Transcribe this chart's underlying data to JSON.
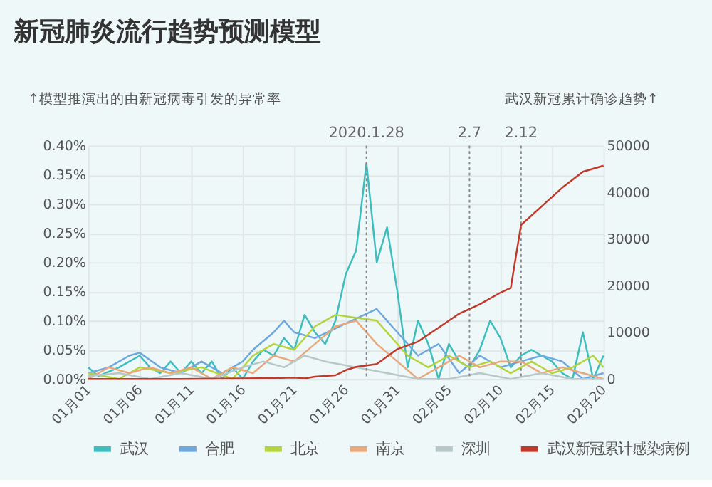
{
  "chart_data": {
    "type": "line",
    "title": "新冠肺炎流行趋势预测模型",
    "ylabel": "↑模型推演出的由新冠病毒引发的异常率",
    "y2label": "武汉新冠累计确诊趋势↑",
    "xlim": [
      "2020-01-01",
      "2020-02-20"
    ],
    "xticks": [
      {
        "value": "2020-01-01",
        "label": "01月01"
      },
      {
        "value": "2020-01-06",
        "label": "01月06"
      },
      {
        "value": "2020-01-11",
        "label": "01月11"
      },
      {
        "value": "2020-01-16",
        "label": "01月16"
      },
      {
        "value": "2020-01-21",
        "label": "01月21"
      },
      {
        "value": "2020-01-26",
        "label": "01月26"
      },
      {
        "value": "2020-01-31",
        "label": "01月31"
      },
      {
        "value": "2020-02-05",
        "label": "02月05"
      },
      {
        "value": "2020-02-10",
        "label": "02月10"
      },
      {
        "value": "2020-02-15",
        "label": "02月15"
      },
      {
        "value": "2020-02-20",
        "label": "02月20"
      }
    ],
    "ylim": [
      0,
      0.4
    ],
    "yticks": [
      {
        "value": 0,
        "label": "0.00%"
      },
      {
        "value": 0.05,
        "label": "0.05%"
      },
      {
        "value": 0.1,
        "label": "0.10%"
      },
      {
        "value": 0.15,
        "label": "0.15%"
      },
      {
        "value": 0.2,
        "label": "0.20%"
      },
      {
        "value": 0.25,
        "label": "0.25%"
      },
      {
        "value": 0.3,
        "label": "0.30%"
      },
      {
        "value": 0.35,
        "label": "0.35%"
      },
      {
        "value": 0.4,
        "label": "0.40%"
      }
    ],
    "y2lim": [
      0,
      50000
    ],
    "y2ticks": [
      0,
      10000,
      20000,
      30000,
      40000,
      50000
    ],
    "grid": true,
    "legend": "bottom",
    "line_style": "solid",
    "marker": "none",
    "ref_lines": [
      {
        "axis": "x",
        "value": "2020-01-28",
        "label": "2020.1.28",
        "color": "#888888",
        "line_style": "dotted"
      },
      {
        "axis": "x",
        "value": "2020-02-07",
        "label": "2.7",
        "color": "#888888",
        "line_style": "dotted"
      },
      {
        "axis": "x",
        "value": "2020-02-12",
        "label": "2.12",
        "color": "#888888",
        "line_style": "dotted"
      }
    ],
    "series": [
      {
        "name": "武汉",
        "color": "#3dbdbd",
        "x": [
          "2020-01-01",
          "2020-01-02",
          "2020-01-04",
          "2020-01-06",
          "2020-01-07",
          "2020-01-08",
          "2020-01-09",
          "2020-01-10",
          "2020-01-11",
          "2020-01-12",
          "2020-01-13",
          "2020-01-14",
          "2020-01-15",
          "2020-01-16",
          "2020-01-17",
          "2020-01-18",
          "2020-01-19",
          "2020-01-20",
          "2020-01-21",
          "2020-01-22",
          "2020-01-23",
          "2020-01-24",
          "2020-01-25",
          "2020-01-26",
          "2020-01-27",
          "2020-01-28",
          "2020-01-29",
          "2020-01-30",
          "2020-01-31",
          "2020-02-01",
          "2020-02-02",
          "2020-02-03",
          "2020-02-04",
          "2020-02-05",
          "2020-02-06",
          "2020-02-07",
          "2020-02-08",
          "2020-02-09",
          "2020-02-10",
          "2020-02-11",
          "2020-02-12",
          "2020-02-13",
          "2020-02-14",
          "2020-02-15",
          "2020-02-16",
          "2020-02-17",
          "2020-02-18",
          "2020-02-19",
          "2020-02-20"
        ],
        "values": [
          0.02,
          0.005,
          0.02,
          0.04,
          0.02,
          0.01,
          0.03,
          0.01,
          0.03,
          0.01,
          0.03,
          0.0,
          0.02,
          0.0,
          0.03,
          0.05,
          0.04,
          0.07,
          0.05,
          0.11,
          0.08,
          0.06,
          0.1,
          0.18,
          0.22,
          0.37,
          0.2,
          0.26,
          0.15,
          0.02,
          0.1,
          0.06,
          0.0,
          0.06,
          0.03,
          0.02,
          0.05,
          0.1,
          0.07,
          0.02,
          0.04,
          0.05,
          0.04,
          0.03,
          0.01,
          0.0,
          0.08,
          0.0,
          0.04
        ]
      },
      {
        "name": "合肥",
        "color": "#6fa8dc",
        "x": [
          "2020-01-01",
          "2020-01-03",
          "2020-01-05",
          "2020-01-06",
          "2020-01-08",
          "2020-01-10",
          "2020-01-12",
          "2020-01-14",
          "2020-01-16",
          "2020-01-17",
          "2020-01-19",
          "2020-01-20",
          "2020-01-21",
          "2020-01-23",
          "2020-01-29",
          "2020-01-31",
          "2020-02-02",
          "2020-02-04",
          "2020-02-06",
          "2020-02-08",
          "2020-02-10",
          "2020-02-12",
          "2020-02-14",
          "2020-02-16",
          "2020-02-18",
          "2020-02-20"
        ],
        "values": [
          0.01,
          0.02,
          0.04,
          0.045,
          0.02,
          0.01,
          0.03,
          0.01,
          0.03,
          0.05,
          0.08,
          0.1,
          0.08,
          0.07,
          0.12,
          0.08,
          0.04,
          0.06,
          0.01,
          0.04,
          0.02,
          0.03,
          0.04,
          0.03,
          0.0,
          0.01
        ]
      },
      {
        "name": "北京",
        "color": "#b5d33d",
        "x": [
          "2020-01-01",
          "2020-01-04",
          "2020-01-06",
          "2020-01-09",
          "2020-01-12",
          "2020-01-15",
          "2020-01-17",
          "2020-01-19",
          "2020-01-21",
          "2020-01-23",
          "2020-01-25",
          "2020-01-29",
          "2020-02-01",
          "2020-02-03",
          "2020-02-05",
          "2020-02-07",
          "2020-02-09",
          "2020-02-11",
          "2020-02-13",
          "2020-02-15",
          "2020-02-17",
          "2020-02-19",
          "2020-02-20"
        ],
        "values": [
          0.01,
          0.0,
          0.02,
          0.01,
          0.02,
          0.0,
          0.04,
          0.06,
          0.05,
          0.09,
          0.11,
          0.1,
          0.04,
          0.02,
          0.04,
          0.02,
          0.03,
          0.01,
          0.03,
          0.01,
          0.02,
          0.04,
          0.02
        ]
      },
      {
        "name": "南京",
        "color": "#e8a87c",
        "x": [
          "2020-01-01",
          "2020-01-03",
          "2020-01-05",
          "2020-01-07",
          "2020-01-09",
          "2020-01-11",
          "2020-01-13",
          "2020-01-15",
          "2020-01-17",
          "2020-01-19",
          "2020-01-21",
          "2020-01-23",
          "2020-01-25",
          "2020-01-27",
          "2020-01-29",
          "2020-01-31",
          "2020-02-02",
          "2020-02-04",
          "2020-02-06",
          "2020-02-08",
          "2020-02-10",
          "2020-02-12",
          "2020-02-14",
          "2020-02-16",
          "2020-02-18",
          "2020-02-20"
        ],
        "values": [
          0.0,
          0.02,
          0.01,
          0.02,
          0.01,
          0.02,
          0.0,
          0.02,
          0.01,
          0.04,
          0.03,
          0.06,
          0.09,
          0.1,
          0.06,
          0.03,
          0.0,
          0.02,
          0.04,
          0.02,
          0.03,
          0.03,
          0.01,
          0.02,
          0.01,
          0.0
        ]
      },
      {
        "name": "深圳",
        "color": "#b8c8c8",
        "x": [
          "2020-01-01",
          "2020-01-04",
          "2020-01-07",
          "2020-01-10",
          "2020-01-13",
          "2020-01-16",
          "2020-01-18",
          "2020-01-20",
          "2020-01-22",
          "2020-01-24",
          "2020-01-27",
          "2020-01-30",
          "2020-02-02",
          "2020-02-05",
          "2020-02-08",
          "2020-02-11",
          "2020-02-14",
          "2020-02-17",
          "2020-02-20"
        ],
        "values": [
          0.005,
          0.01,
          0.0,
          0.01,
          0.0,
          0.02,
          0.03,
          0.02,
          0.04,
          0.03,
          0.02,
          0.01,
          0.0,
          0.0,
          0.01,
          0.0,
          0.01,
          0.0,
          0.0
        ]
      },
      {
        "name": "武汉新冠累计感染病例",
        "color": "#c0392b",
        "axis": "y2",
        "x": [
          "2020-01-01",
          "2020-01-10",
          "2020-01-16",
          "2020-01-19",
          "2020-01-21",
          "2020-01-22",
          "2020-01-23",
          "2020-01-25",
          "2020-01-26",
          "2020-01-27",
          "2020-01-29",
          "2020-01-31",
          "2020-02-02",
          "2020-02-04",
          "2020-02-06",
          "2020-02-08",
          "2020-02-10",
          "2020-02-11",
          "2020-02-12",
          "2020-02-14",
          "2020-02-16",
          "2020-02-18",
          "2020-02-20"
        ],
        "values": [
          0,
          0,
          100,
          200,
          300,
          100,
          500,
          800,
          1900,
          2600,
          3200,
          6400,
          8000,
          11000,
          14000,
          16000,
          18500,
          19500,
          33000,
          37000,
          41000,
          44400,
          45700
        ]
      }
    ]
  }
}
